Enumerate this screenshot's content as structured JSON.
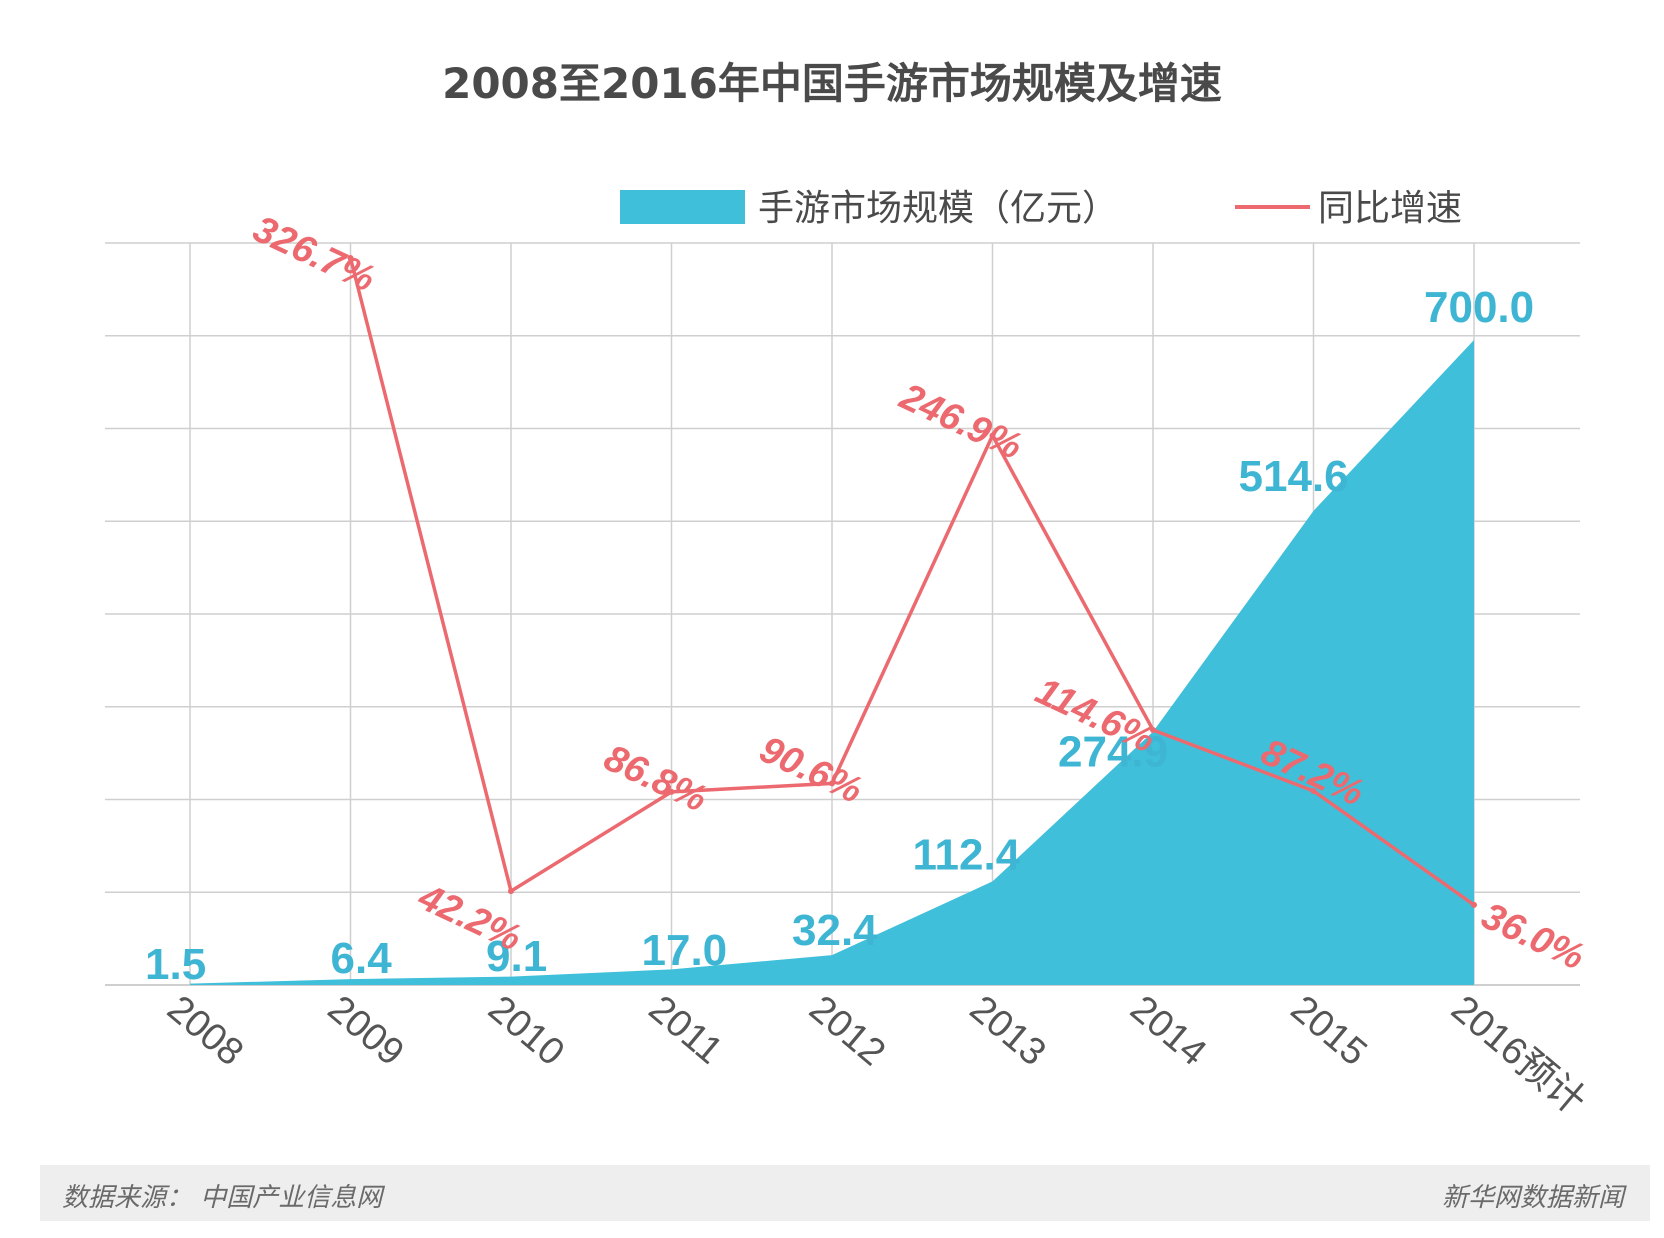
{
  "title": "2008至2016年中国手游市场规模及增速",
  "legend": {
    "area_label": "手游市场规模（亿元）",
    "line_label": "同比增速"
  },
  "footer": {
    "source": "数据来源： 中国产业信息网",
    "credit": "新华网数据新闻"
  },
  "colors": {
    "area": "#3fbfd9",
    "line": "#ec6a6f",
    "grid": "#cfcfcf",
    "axis": "#999999"
  },
  "chart_data": {
    "type": "area",
    "title": "2008至2016年中国手游市场规模及增速",
    "categories": [
      "2008",
      "2009",
      "2010",
      "2011",
      "2012",
      "2013",
      "2014",
      "2015",
      "2016预计"
    ],
    "series": [
      {
        "name": "手游市场规模（亿元）",
        "type": "area",
        "values": [
          1.5,
          6.4,
          9.1,
          17.0,
          32.4,
          112.4,
          274.9,
          514.6,
          700.0
        ],
        "labels": [
          "1.5",
          "6.4",
          "9.1",
          "17.0",
          "32.4",
          "112.4",
          "274.9",
          "514.6",
          "700.0"
        ]
      },
      {
        "name": "同比增速",
        "type": "line",
        "values": [
          null,
          326.7,
          42.2,
          86.8,
          90.6,
          246.9,
          114.6,
          87.2,
          36.0
        ],
        "labels": [
          "",
          "326.7%",
          "42.2%",
          "86.8%",
          "90.6%",
          "246.9%",
          "114.6%",
          "87.2%",
          "36.0%"
        ]
      }
    ],
    "ylim_area": [
      0,
      700
    ],
    "grid": true,
    "legend_position": "top-right"
  }
}
